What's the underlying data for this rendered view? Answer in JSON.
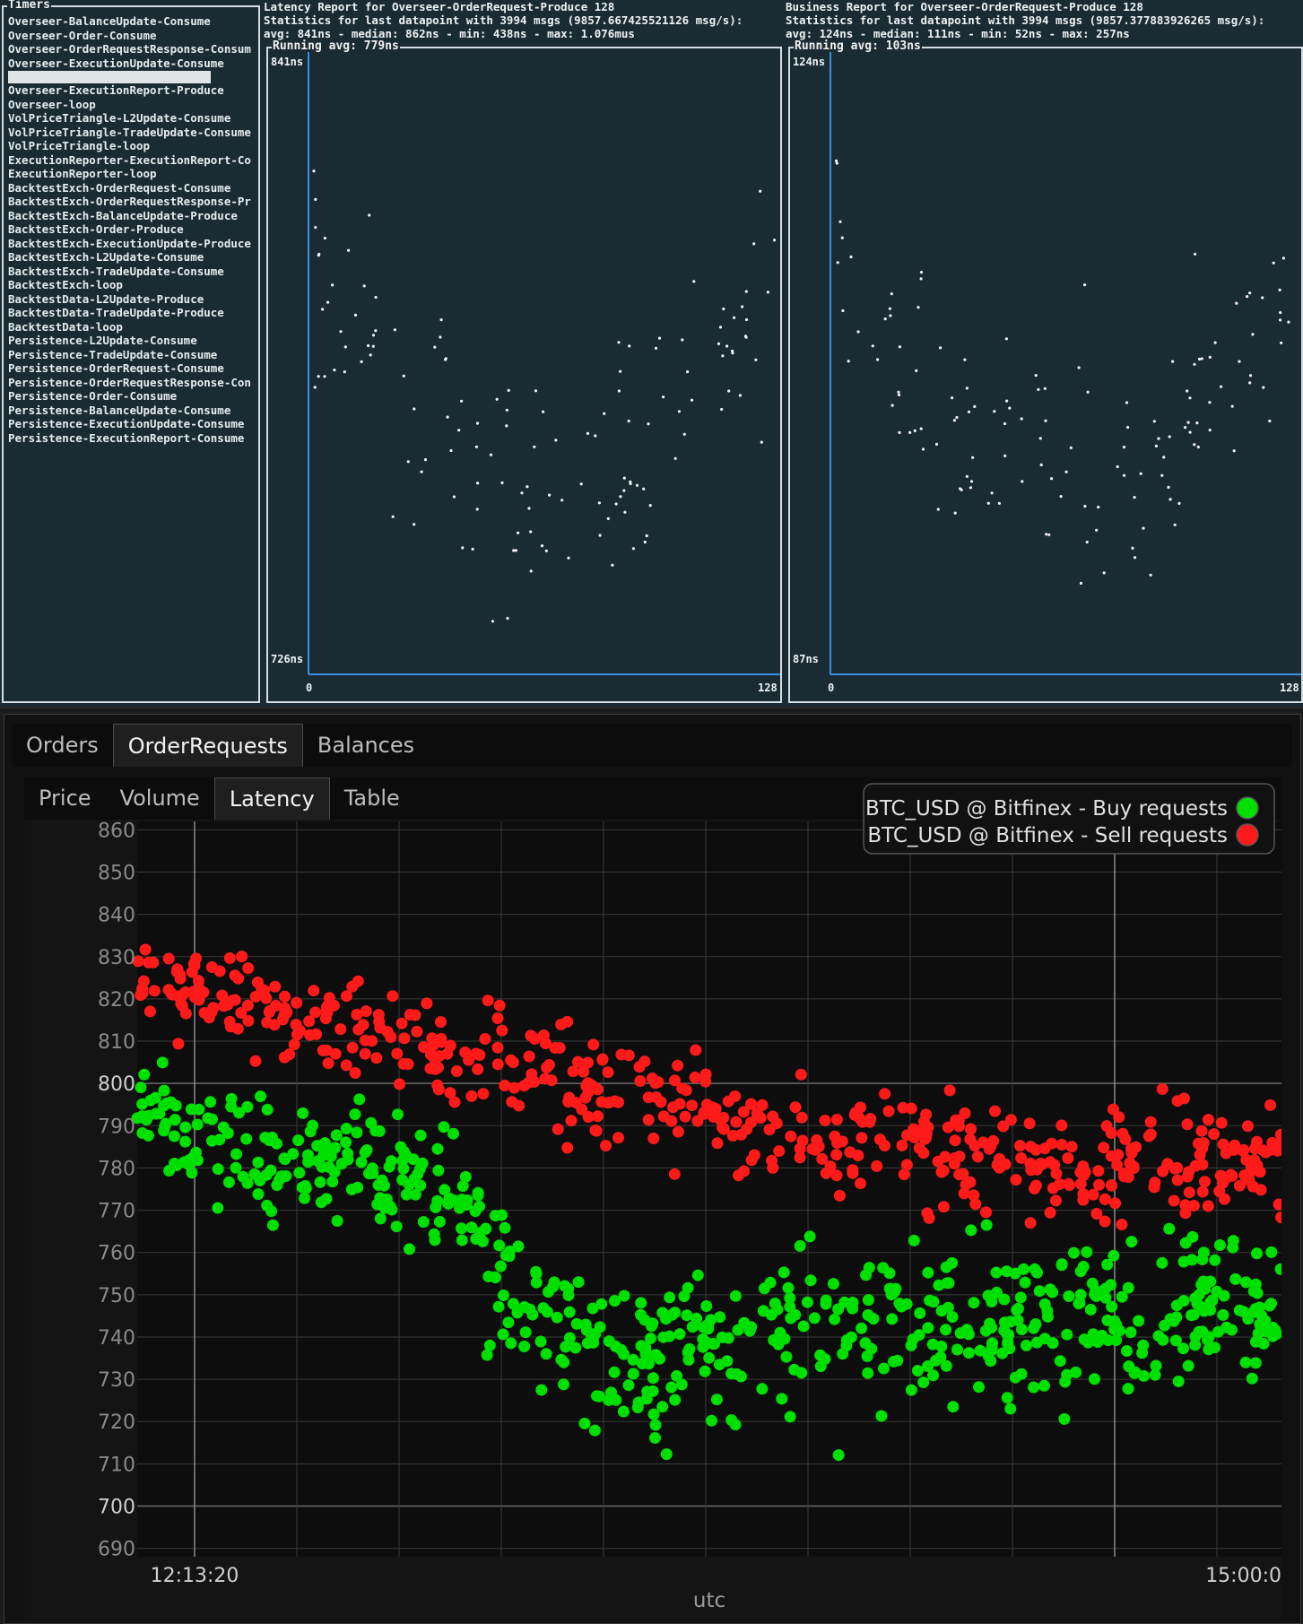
{
  "timers": {
    "title": "Timers",
    "items": [
      "Overseer-BalanceUpdate-Consume",
      "Overseer-Order-Consume",
      "Overseer-OrderRequestResponse-Consum",
      "Overseer-ExecutionUpdate-Consume",
      "",
      "Overseer-ExecutionReport-Produce",
      "Overseer-loop",
      "VolPriceTriangle-L2Update-Consume",
      "VolPriceTriangle-TradeUpdate-Consume",
      "VolPriceTriangle-loop",
      "ExecutionReporter-ExecutionReport-Co",
      "ExecutionReporter-loop",
      "BacktestExch-OrderRequest-Consume",
      "BacktestExch-OrderRequestResponse-Pr",
      "BacktestExch-BalanceUpdate-Produce",
      "BacktestExch-Order-Produce",
      "BacktestExch-ExecutionUpdate-Produce",
      "BacktestExch-L2Update-Consume",
      "BacktestExch-TradeUpdate-Consume",
      "BacktestExch-loop",
      "BacktestData-L2Update-Produce",
      "BacktestData-TradeUpdate-Produce",
      "BacktestData-loop",
      "Persistence-L2Update-Consume",
      "Persistence-TradeUpdate-Consume",
      "Persistence-OrderRequest-Consume",
      "Persistence-OrderRequestResponse-Con",
      "Persistence-Order-Consume",
      "Persistence-BalanceUpdate-Consume",
      "Persistence-ExecutionUpdate-Consume",
      "Persistence-ExecutionReport-Consume"
    ],
    "selected_index": 4
  },
  "latency": {
    "line1": "Latency Report for Overseer-OrderRequest-Produce 128",
    "line2": "Statistics for last datapoint with 3994 msgs (9857.667425521126 msg/s):",
    "line3": "avg: 841ns - median: 862ns - min: 438ns - max: 1.076mus",
    "box_title": "Running avg: 779ns",
    "y_top": "841ns",
    "y_bottom": "726ns",
    "x_left": "0",
    "x_right": "128",
    "ylim": [
      726,
      841
    ],
    "xlim": [
      0,
      128
    ]
  },
  "business": {
    "line1": "Business Report for Overseer-OrderRequest-Produce 128",
    "line2": "Statistics for last datapoint with 3994 msgs (9857.377883926265 msg/s):",
    "line3": "avg: 124ns - median: 111ns - min: 52ns - max: 257ns",
    "box_title": "Running avg: 103ns",
    "y_top": "124ns",
    "y_bottom": "87ns",
    "x_left": "0",
    "x_right": "128",
    "ylim": [
      87,
      124
    ],
    "xlim": [
      0,
      128
    ]
  },
  "tabs": {
    "main": [
      "Orders",
      "OrderRequests",
      "Balances"
    ],
    "main_active": 1,
    "sub": [
      "Price",
      "Volume",
      "Latency",
      "Table"
    ],
    "sub_active": 2
  },
  "chart_data": {
    "type": "scatter",
    "xlabel": "utc",
    "x_ticks": [
      "12:13:20",
      "15:00:0"
    ],
    "ylim": [
      688,
      862
    ],
    "y_ticks": [
      690,
      700,
      710,
      720,
      730,
      740,
      750,
      760,
      770,
      780,
      790,
      800,
      810,
      820,
      830,
      840,
      850,
      860
    ],
    "grid": true,
    "legend": "top-right",
    "series": [
      {
        "name": "BTC_USD @ Bitfinex - Buy requests",
        "color": "#00e000",
        "n": 650,
        "trend": [
          {
            "x": 0.0,
            "y": 792
          },
          {
            "x": 0.15,
            "y": 782
          },
          {
            "x": 0.28,
            "y": 776
          },
          {
            "x": 0.33,
            "y": 745
          },
          {
            "x": 0.42,
            "y": 735
          },
          {
            "x": 0.6,
            "y": 742
          },
          {
            "x": 0.8,
            "y": 745
          },
          {
            "x": 1.0,
            "y": 748
          }
        ]
      },
      {
        "name": "BTC_USD @ Bitfinex - Sell requests",
        "color": "#ff1a1a",
        "n": 520,
        "trend": [
          {
            "x": 0.0,
            "y": 825
          },
          {
            "x": 0.15,
            "y": 815
          },
          {
            "x": 0.3,
            "y": 808
          },
          {
            "x": 0.45,
            "y": 795
          },
          {
            "x": 0.6,
            "y": 786
          },
          {
            "x": 0.8,
            "y": 780
          },
          {
            "x": 1.0,
            "y": 783
          }
        ]
      }
    ]
  }
}
